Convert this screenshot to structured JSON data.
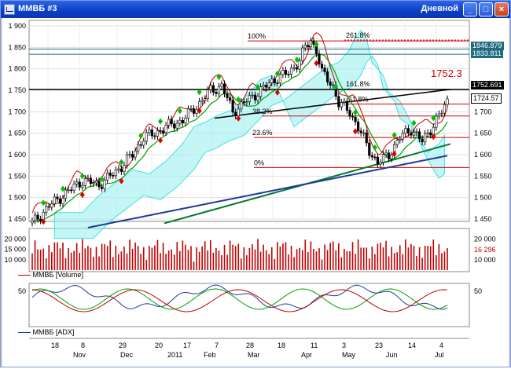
{
  "window": {
    "title": "ММВБ #3",
    "period": "Дневной",
    "minimize_glyph": "_",
    "maximize_glyph": "□",
    "close_glyph": "×"
  },
  "price_panel": {
    "y_ticks": [
      "1 900",
      "1 850",
      "1 800",
      "1 750",
      "1 700",
      "1 650",
      "1 600",
      "1 550",
      "1 500",
      "1 450"
    ],
    "right_ticks": [
      "1 700",
      "1 650",
      "1 600",
      "1 550",
      "1 500",
      "1 450"
    ],
    "fib_levels": [
      "261.8%",
      "100%",
      "161.8%",
      "61.8%",
      "38.2%",
      "23.6%",
      "0%"
    ],
    "last_price_annotation": "1752.3",
    "price_labels": [
      "1846.879",
      "1833.811",
      "1752.691",
      "1724.57"
    ],
    "label_colors": {
      "cyan": "#1e6b7d",
      "dark": "#000000",
      "white": "#ffffff"
    }
  },
  "volume_panel": {
    "y_ticks": [
      "20 000",
      "15 000",
      "10 000"
    ],
    "right_ticks": [
      "20 000",
      "10 000"
    ],
    "last_value": "16 296",
    "legend": "ММВБ [Volume]"
  },
  "adx_panel": {
    "y_ticks": [
      "50"
    ],
    "right_ticks": [
      "50"
    ],
    "legend": "ММВБ [ADX]"
  },
  "time_axis": {
    "day_labels": [
      "18",
      "8",
      "29",
      "20",
      "17",
      "7",
      "28",
      "18",
      "11",
      "3",
      "23",
      "14",
      "4"
    ],
    "month_labels": [
      "Nov",
      "Dec",
      "2011",
      "Feb",
      "Mar",
      "Apr",
      "May",
      "Jun",
      "Jul"
    ]
  },
  "colors": {
    "candle": "#000000",
    "kumo": "#40e0e0",
    "ma_blue": "#1f3a9c",
    "ma_green": "#00a000",
    "red_series": "#c00000",
    "fib_line": "#d00000",
    "trend_green": "#007a30",
    "up_marker": "#00c000",
    "down_marker": "#e00000"
  }
}
